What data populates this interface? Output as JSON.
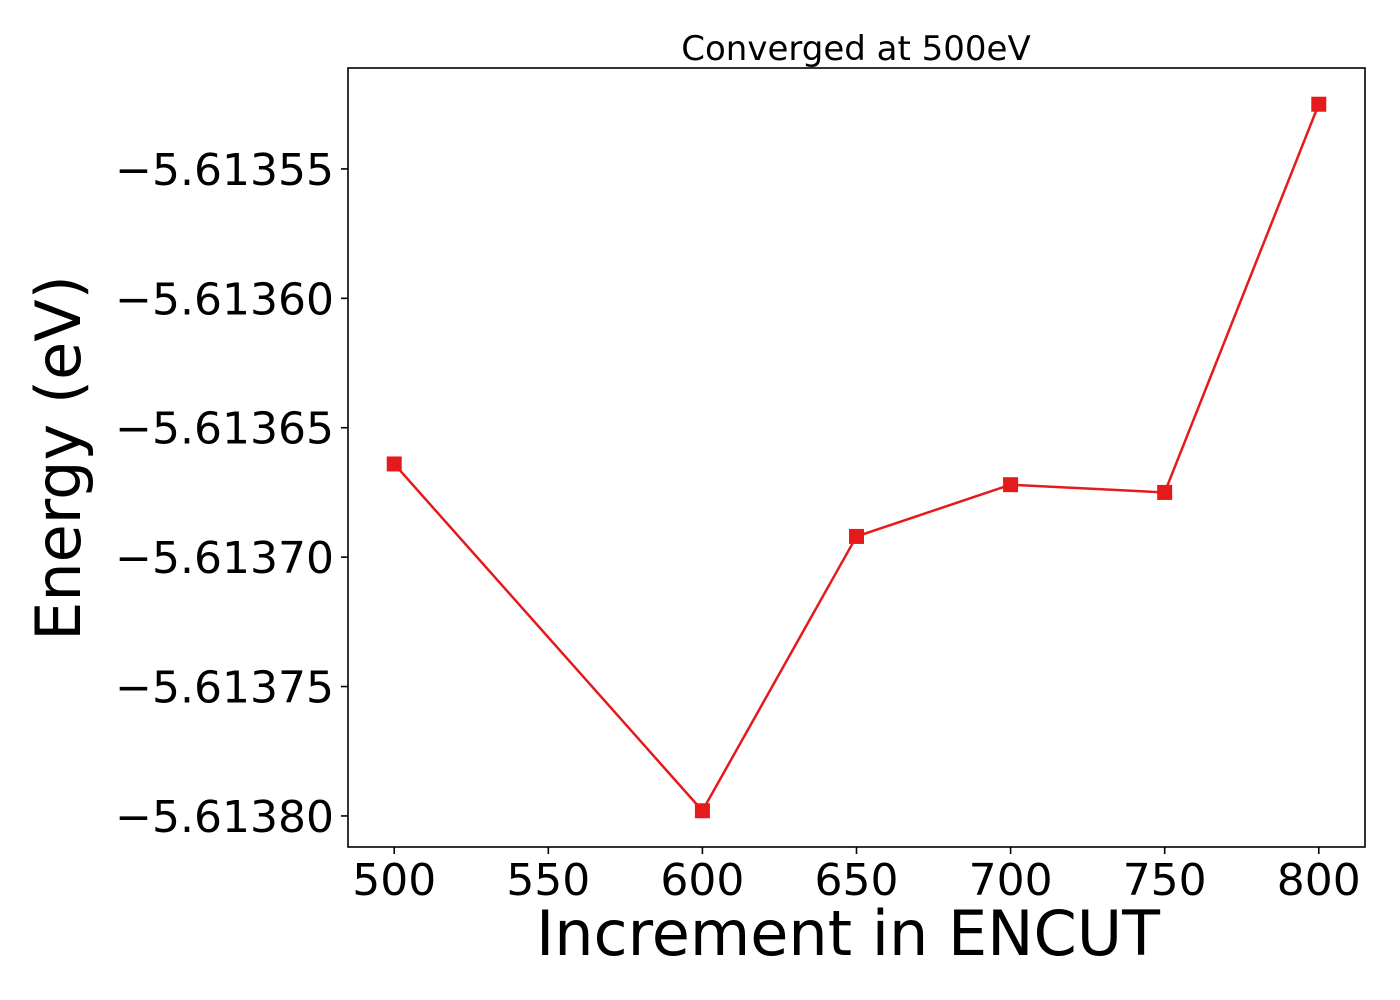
{
  "chart_data": {
    "type": "line",
    "title": "Converged at 500eV",
    "xlabel": "Increment in ENCUT",
    "ylabel": "Energy (eV)",
    "x": [
      500,
      600,
      650,
      700,
      750,
      800
    ],
    "series": [
      {
        "values": [
          -5.613664,
          -5.613798,
          -5.613692,
          -5.613672,
          -5.613675,
          -5.613525
        ],
        "color": "#e41a1c",
        "marker": "square"
      }
    ],
    "xticks": [
      500,
      550,
      600,
      650,
      700,
      750,
      800
    ],
    "xtick_labels": [
      "500",
      "550",
      "600",
      "650",
      "700",
      "750",
      "800"
    ],
    "yticks": [
      -5.61355,
      -5.6136,
      -5.61365,
      -5.6137,
      -5.61375,
      -5.6138
    ],
    "ytick_labels": [
      "−5.61355",
      "−5.61360",
      "−5.61365",
      "−5.61370",
      "−5.61375",
      "−5.61380"
    ],
    "xlim": [
      485,
      815
    ],
    "ylim": [
      -5.613812,
      -5.613511
    ],
    "grid": false,
    "legend": "none"
  }
}
